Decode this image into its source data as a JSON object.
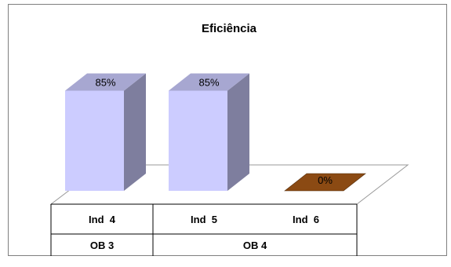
{
  "chart_data": {
    "type": "bar",
    "title": "Eficiência",
    "categories": [
      "Ind  4",
      "Ind  5",
      "Ind  6"
    ],
    "groups": [
      {
        "label": "OB 3",
        "categories": [
          "Ind  4"
        ]
      },
      {
        "label": "OB 4",
        "categories": [
          "Ind  5",
          "Ind  6"
        ]
      }
    ],
    "values": [
      85,
      85,
      0
    ],
    "data_labels": [
      "85%",
      "85%",
      "0%"
    ],
    "ylim": [
      0,
      100
    ],
    "style_3d": true,
    "colors": [
      "#ccccff",
      "#ccccff",
      "#8b4a13"
    ],
    "legend": "none",
    "grid": false
  }
}
